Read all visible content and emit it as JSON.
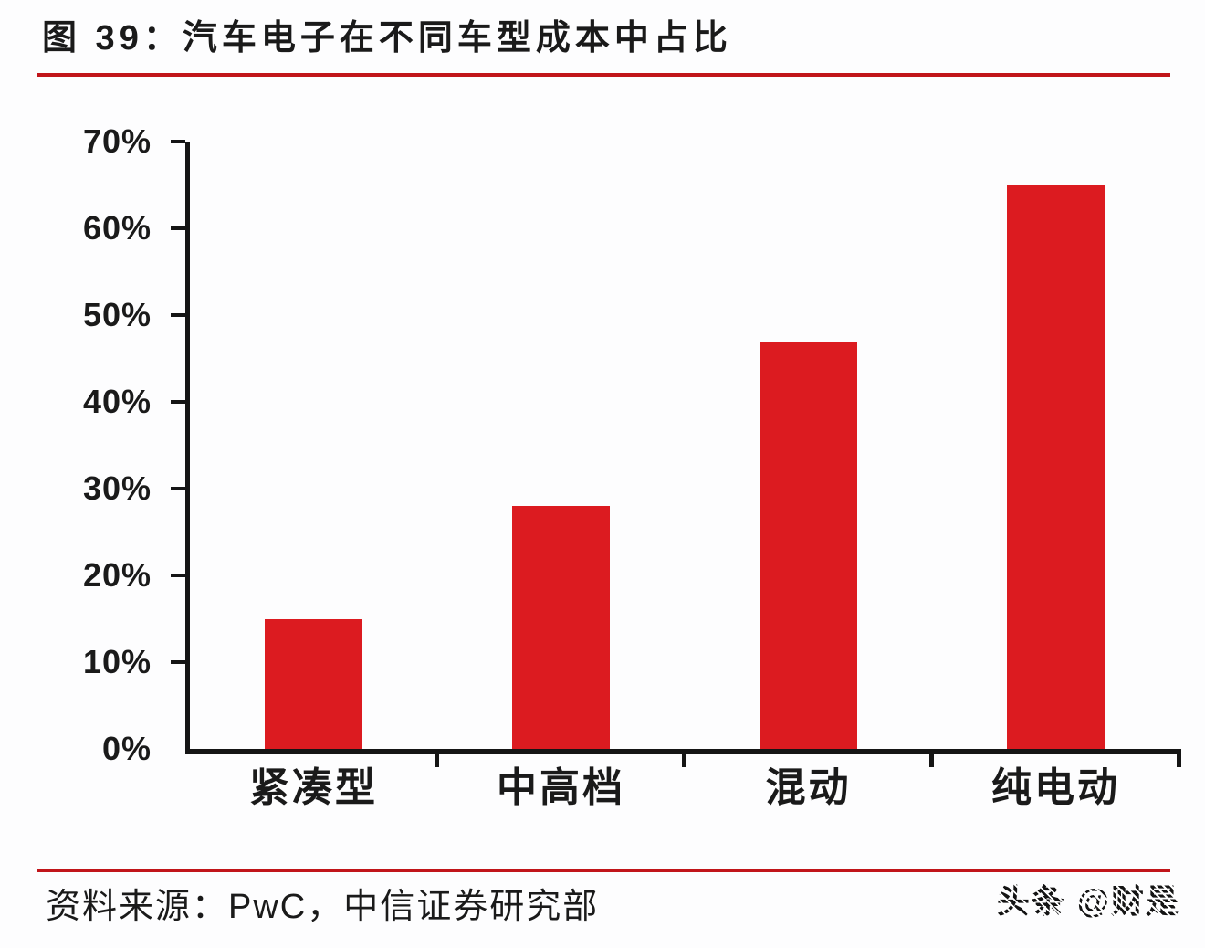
{
  "header": {
    "title": "图 39：汽车电子在不同车型成本中占比"
  },
  "chart_data": {
    "type": "bar",
    "title": "汽车电子在不同车型成本中占比",
    "categories": [
      "紧凑型",
      "中高档",
      "混动",
      "纯电动"
    ],
    "values": [
      15,
      28,
      47,
      65
    ],
    "unit": "%",
    "xlabel": "",
    "ylabel": "",
    "ylim": [
      0,
      70
    ],
    "yticks": [
      0,
      10,
      20,
      30,
      40,
      50,
      60,
      70
    ],
    "ytick_labels": [
      "0%",
      "10%",
      "20%",
      "30%",
      "40%",
      "50%",
      "60%",
      "70%"
    ],
    "grid": false,
    "legend": "none",
    "bar_color": "#DC1B20",
    "axis_color": "#151515"
  },
  "footer": {
    "source": "资料来源：PwC，中信证券研究部",
    "watermark": "头条 @财是"
  },
  "colors": {
    "accent_rule": "#C1151A",
    "background": "#FDFDFE",
    "text": "#1A1A1A"
  }
}
